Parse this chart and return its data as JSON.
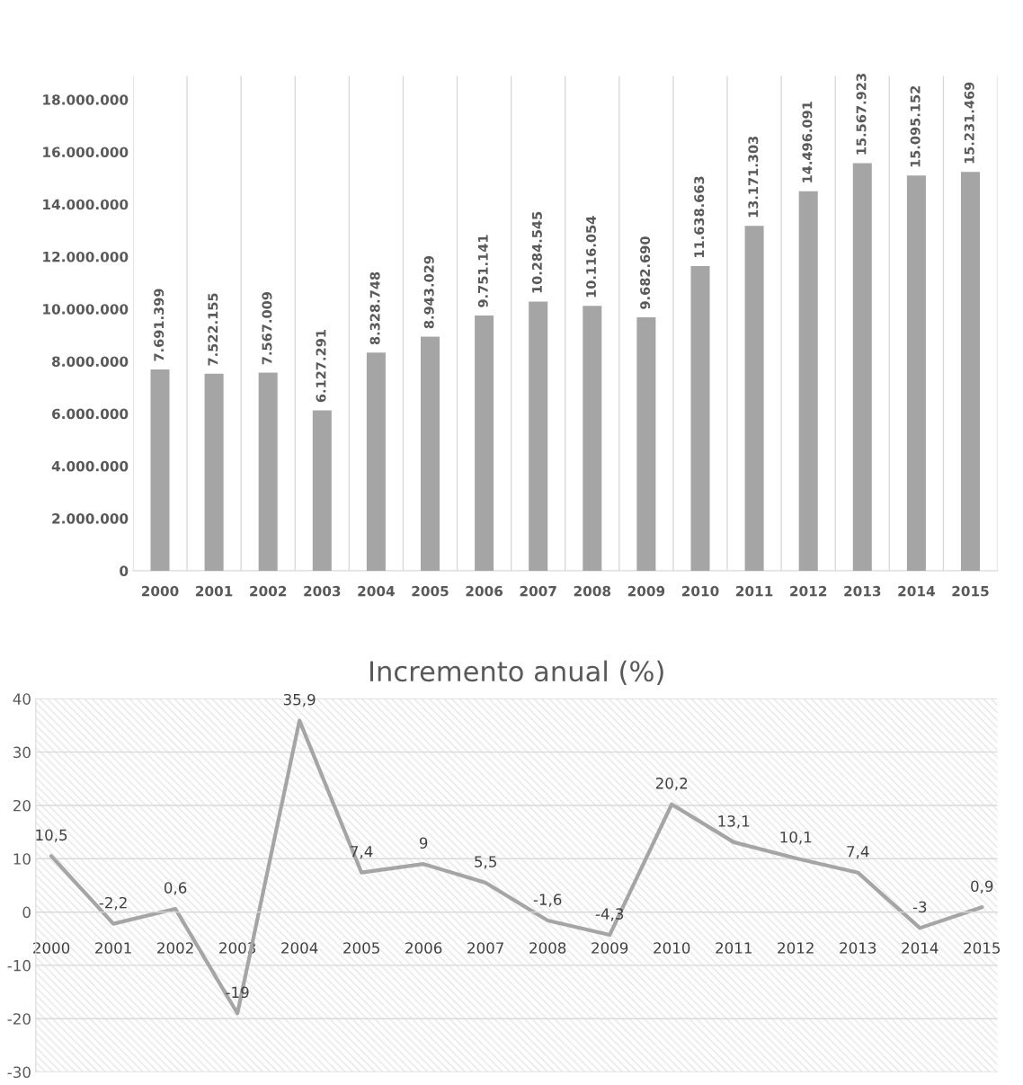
{
  "chart_data": [
    {
      "type": "bar",
      "categories": [
        "2000",
        "2001",
        "2002",
        "2003",
        "2004",
        "2005",
        "2006",
        "2007",
        "2008",
        "2009",
        "2010",
        "2011",
        "2012",
        "2013",
        "2014",
        "2015"
      ],
      "values": [
        7691399,
        7522155,
        7567009,
        6127291,
        8328748,
        8943029,
        9751141,
        10284545,
        10116054,
        9682690,
        11638663,
        13171303,
        14496091,
        15567923,
        15095152,
        15231469
      ],
      "value_labels": [
        "7.691.399",
        "7.522.155",
        "7.567.009",
        "6.127.291",
        "8.328.748",
        "8.943.029",
        "9.751.141",
        "10.284.545",
        "10.116.054",
        "9.682.690",
        "11.638.663",
        "13.171.303",
        "14.496.091",
        "15.567.923",
        "15.095.152",
        "15.231.469"
      ],
      "color": "#a5a5a5",
      "ylim": [
        0,
        18900000
      ],
      "yticks": [
        0,
        {
          "value": 2000000,
          "label": "2.000.000"
        },
        {
          "value": 4000000,
          "label": "4.000.000"
        },
        {
          "value": 6000000,
          "label": "6.000.000"
        },
        {
          "value": 8000000,
          "label": "8.000.000"
        },
        {
          "value": 10000000,
          "label": "10.000.000"
        },
        {
          "value": 12000000,
          "label": "12.000.000"
        },
        {
          "value": 14000000,
          "label": "14.000.000"
        },
        {
          "value": 16000000,
          "label": "16.000.000"
        },
        {
          "value": 18000000,
          "label": "18.000.000"
        }
      ],
      "grid": "x",
      "legend": false
    },
    {
      "type": "line",
      "title": "Incremento anual (%)",
      "categories": [
        "2000",
        "2001",
        "2002",
        "2003",
        "2004",
        "2005",
        "2006",
        "2007",
        "2008",
        "2009",
        "2010",
        "2011",
        "2012",
        "2013",
        "2014",
        "2015"
      ],
      "values": [
        10.5,
        -2.2,
        0.6,
        -19,
        35.9,
        7.4,
        9,
        5.5,
        -1.6,
        -4.3,
        20.2,
        13.1,
        10.1,
        7.4,
        -3,
        0.9
      ],
      "value_labels": [
        "10,5",
        "-2,2",
        "0,6",
        "-19",
        "35,9",
        "7,4",
        "9",
        "5,5",
        "-1,6",
        "-4,3",
        "20,2",
        "13,1",
        "10,1",
        "7,4",
        "-3",
        "0,9"
      ],
      "color": "#a5a5a5",
      "ylim": [
        -30,
        40
      ],
      "yticks": [
        {
          "value": -30,
          "label": "-30"
        },
        {
          "value": -20,
          "label": "-20"
        },
        {
          "value": -10,
          "label": "-10"
        },
        0,
        10,
        20,
        30,
        40
      ],
      "grid": "y",
      "legend": false,
      "marker": "none",
      "line_style": "solid"
    }
  ]
}
